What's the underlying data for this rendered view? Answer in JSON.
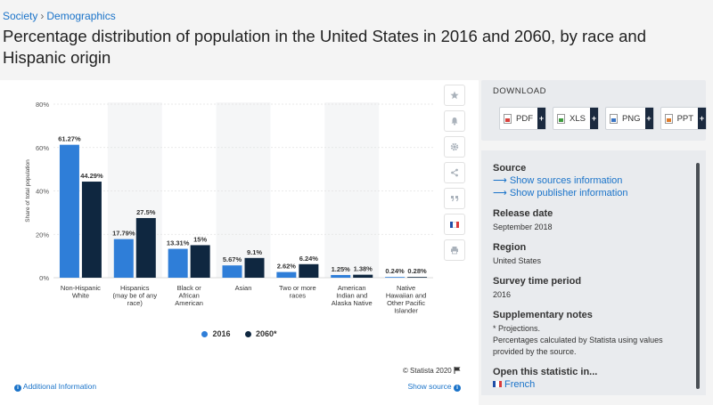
{
  "breadcrumb": {
    "section": "Society",
    "separator": "›",
    "page": "Demographics"
  },
  "title": "Percentage distribution of population in the United States in 2016 and 2060, by race and Hispanic origin",
  "chart_data": {
    "type": "bar",
    "categories": [
      [
        "Non-Hispanic",
        "White"
      ],
      [
        "Hispanics",
        "(may be of any",
        "race)"
      ],
      [
        "Black or",
        "African",
        "American"
      ],
      [
        "Asian"
      ],
      [
        "Two or more",
        "races"
      ],
      [
        "American",
        "Indian and",
        "Alaska Native"
      ],
      [
        "Native",
        "Hawaiian and",
        "Other Pacific",
        "Islander"
      ]
    ],
    "series": [
      {
        "name": "2016",
        "values": [
          61.27,
          17.79,
          13.31,
          5.67,
          2.62,
          1.25,
          0.24
        ],
        "labels": [
          "61.27%",
          "17.79%",
          "13.31%",
          "5.67%",
          "2.62%",
          "1.25%",
          "0.24%"
        ],
        "color": "#2f7ed8"
      },
      {
        "name": "2060*",
        "values": [
          44.29,
          27.5,
          15,
          9.1,
          6.24,
          1.38,
          0.28
        ],
        "labels": [
          "44.29%",
          "27.5%",
          "15%",
          "9.1%",
          "6.24%",
          "1.38%",
          "0.28%"
        ],
        "color": "#0f2740"
      }
    ],
    "ylabel": "Share of total population",
    "yticks": [
      "0%",
      "20%",
      "40%",
      "60%",
      "80%"
    ],
    "ylim": [
      0,
      80
    ],
    "grid": true,
    "legend": "bottom-center"
  },
  "credit": "© Statista 2020",
  "additional_info": "Additional Information",
  "show_source": "Show source",
  "toolbar": {
    "icons": [
      "star-icon",
      "bell-icon",
      "gear-icon",
      "share-icon",
      "quote-icon",
      "french-flag-icon",
      "print-icon"
    ]
  },
  "download": {
    "heading": "DOWNLOAD",
    "buttons": [
      {
        "label": "PDF",
        "color": "#d9413c"
      },
      {
        "label": "XLS",
        "color": "#3f9b3f"
      },
      {
        "label": "PNG",
        "color": "#3a75c4"
      },
      {
        "label": "PPT",
        "color": "#e07b2a"
      }
    ],
    "plus": "+"
  },
  "details": {
    "source_heading": "Source",
    "sources_link": "⟶ Show sources information",
    "publisher_link": "⟶ Show publisher information",
    "release_heading": "Release date",
    "release_value": "September 2018",
    "region_heading": "Region",
    "region_value": "United States",
    "survey_heading": "Survey time period",
    "survey_value": "2016",
    "notes_heading": "Supplementary notes",
    "notes_line1": "* Projections.",
    "notes_line2": "Percentages calculated by Statista using values provided by the source.",
    "open_heading": "Open this statistic in...",
    "open_value": "French"
  }
}
